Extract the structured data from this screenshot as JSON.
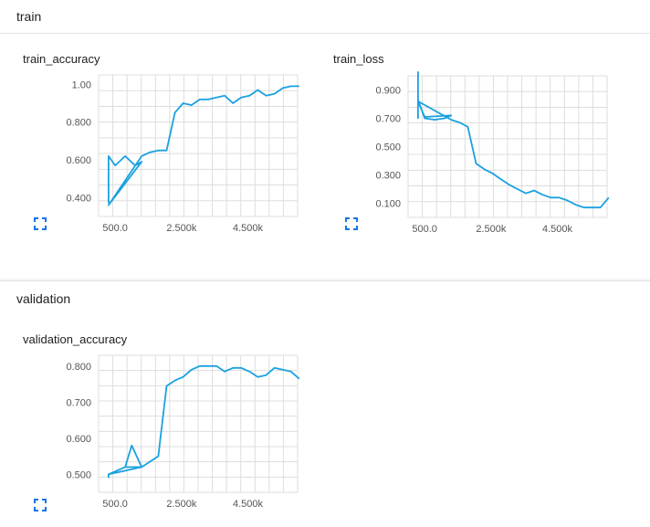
{
  "sections": [
    {
      "title": "train"
    },
    {
      "title": "validation"
    }
  ],
  "icons": {
    "expand": "expand-icon"
  },
  "colors": {
    "line": "#1aa1e0",
    "grid": "#dddddd",
    "expand": "#1a73e8"
  },
  "chart_data": [
    {
      "type": "line",
      "title": "train_accuracy",
      "xlabel": "",
      "ylabel": "",
      "xlim": [
        0,
        6000
      ],
      "ylim": [
        0.3,
        1.05
      ],
      "xticks": [
        500,
        2500,
        4500
      ],
      "xtick_labels": [
        "500.0",
        "2.500k",
        "4.500k"
      ],
      "yticks": [
        0.4,
        0.6,
        0.8,
        1.0
      ],
      "ytick_labels": [
        "0.400",
        "0.600",
        "0.800",
        "1.00"
      ],
      "grid": true,
      "series": [
        {
          "x": [
            0,
            0,
            200,
            500,
            800,
            1000,
            0,
            1000,
            1250,
            1500,
            1750,
            2000,
            2250,
            2500,
            2750,
            3000,
            3250,
            3500,
            3750,
            4000,
            4250,
            4500,
            4750,
            5000,
            5250,
            5500,
            5750
          ],
          "y": [
            0.37,
            0.62,
            0.57,
            0.62,
            0.57,
            0.59,
            0.36,
            0.62,
            0.64,
            0.65,
            0.65,
            0.85,
            0.9,
            0.89,
            0.92,
            0.92,
            0.93,
            0.94,
            0.9,
            0.93,
            0.94,
            0.97,
            0.94,
            0.95,
            0.98,
            0.99,
            0.99
          ]
        }
      ]
    },
    {
      "type": "line",
      "title": "train_loss",
      "xlabel": "",
      "ylabel": "",
      "xlim": [
        0,
        6000
      ],
      "ylim": [
        0.0,
        1.0
      ],
      "xticks": [
        500,
        2500,
        4500
      ],
      "xtick_labels": [
        "500.0",
        "2.500k",
        "4.500k"
      ],
      "yticks": [
        0.1,
        0.3,
        0.5,
        0.7,
        0.9
      ],
      "ytick_labels": [
        "0.100",
        "0.300",
        "0.500",
        "0.700",
        "0.900"
      ],
      "grid": true,
      "series": [
        {
          "x": [
            0,
            0,
            0,
            200,
            500,
            800,
            1000,
            200,
            0,
            1000,
            1250,
            1500,
            1750,
            2000,
            2250,
            2500,
            2750,
            3000,
            3250,
            3500,
            3750,
            4000,
            4250,
            4500,
            4750,
            5000,
            5250,
            5500,
            5750
          ],
          "y": [
            1.03,
            0.7,
            0.83,
            0.7,
            0.69,
            0.7,
            0.72,
            0.71,
            0.82,
            0.69,
            0.67,
            0.64,
            0.38,
            0.34,
            0.31,
            0.27,
            0.23,
            0.2,
            0.17,
            0.19,
            0.16,
            0.14,
            0.14,
            0.12,
            0.09,
            0.07,
            0.07,
            0.07,
            0.14
          ]
        }
      ]
    },
    {
      "type": "line",
      "title": "validation_accuracy",
      "xlabel": "",
      "ylabel": "",
      "xlim": [
        0,
        6000
      ],
      "ylim": [
        0.45,
        0.83
      ],
      "xticks": [
        500,
        2500,
        4500
      ],
      "xtick_labels": [
        "500.0",
        "2.500k",
        "4.500k"
      ],
      "yticks": [
        0.5,
        0.6,
        0.7,
        0.8
      ],
      "ytick_labels": [
        "0.500",
        "0.600",
        "0.700",
        "0.800"
      ],
      "grid": true,
      "series": [
        {
          "x": [
            0,
            0,
            500,
            700,
            1000,
            500,
            0,
            1000,
            1500,
            1750,
            2000,
            2250,
            2500,
            2750,
            3000,
            3250,
            3500,
            3750,
            4000,
            4250,
            4500,
            4750,
            5000,
            5250,
            5500,
            5750
          ],
          "y": [
            0.49,
            0.5,
            0.52,
            0.58,
            0.52,
            0.52,
            0.5,
            0.52,
            0.55,
            0.745,
            0.76,
            0.77,
            0.79,
            0.8,
            0.8,
            0.8,
            0.785,
            0.795,
            0.795,
            0.785,
            0.77,
            0.775,
            0.795,
            0.79,
            0.785,
            0.765
          ]
        }
      ]
    }
  ]
}
